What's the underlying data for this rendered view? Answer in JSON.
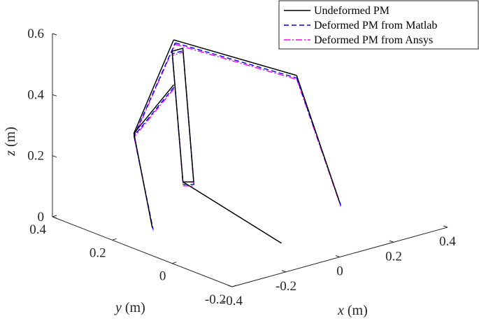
{
  "chart_data": {
    "type": "line3d",
    "grid": false,
    "legend_placement": "top-right",
    "legend": [
      {
        "label": "Undeformed PM",
        "color": "#000000",
        "dash": "solid"
      },
      {
        "label": "Deformed PM from Matlab",
        "color": "#0000ff",
        "dash": "dashed"
      },
      {
        "label": "Deformed PM from Ansys",
        "color": "#ff00ff",
        "dash": "dashdot"
      }
    ],
    "axes": {
      "x": {
        "label_var": "x",
        "label_unit": " (m)",
        "ticks": [
          -0.4,
          -0.2,
          0,
          0.2,
          0.4
        ],
        "tick_labels": [
          "-0.4",
          "-0.2",
          "0",
          "0.2",
          "0.4"
        ],
        "range": [
          -0.4,
          0.4
        ]
      },
      "y": {
        "label_var": "y",
        "label_unit": " (m)",
        "ticks": [
          -0.2,
          0,
          0.2,
          0.4
        ],
        "tick_labels": [
          "-0.2",
          "0",
          "0.2",
          "0.4"
        ],
        "range": [
          -0.2,
          0.4
        ]
      },
      "z": {
        "label_var": "z",
        "label_unit": " (m)",
        "ticks": [
          0,
          0.2,
          0.4,
          0.6
        ],
        "tick_labels": [
          "0",
          "0.2",
          "0.4",
          "0.6"
        ],
        "range": [
          0,
          0.6
        ]
      }
    },
    "series": [
      {
        "name": "Undeformed PM",
        "segments": [
          [
            [
              -0.15,
              0.22,
              0.44
            ],
            [
              -0.32,
              0.2,
              0.33
            ],
            [
              0.05,
              0.4,
              0.47
            ]
          ],
          [
            [
              -0.32,
              0.2,
              0.33
            ],
            [
              -0.43,
              0.04,
              0.11
            ]
          ],
          [
            [
              0.05,
              0.4,
              0.47
            ],
            [
              0.34,
              0.25,
              0.34
            ]
          ],
          [
            [
              0.34,
              0.25,
              0.34
            ],
            [
              0.2,
              -0.02,
              0.06
            ]
          ],
          [
            [
              0.0,
              0.36,
              0.46
            ],
            [
              -0.16,
              0.18,
              0.14
            ],
            [
              -0.12,
              0.18,
              0.13
            ],
            [
              0.04,
              0.36,
              0.46
            ],
            [
              0.0,
              0.36,
              0.46
            ]
          ],
          [
            [
              -0.16,
              0.18,
              0.14
            ],
            [
              -0.05,
              -0.05,
              0.0
            ]
          ]
        ]
      },
      {
        "name": "Deformed PM from Matlab",
        "segments": [
          [
            [
              -0.155,
              0.215,
              0.435
            ],
            [
              -0.325,
              0.195,
              0.325
            ],
            [
              0.045,
              0.39,
              0.465
            ]
          ],
          [
            [
              -0.325,
              0.195,
              0.325
            ],
            [
              -0.432,
              0.035,
              0.105
            ]
          ],
          [
            [
              0.045,
              0.39,
              0.465
            ],
            [
              0.335,
              0.245,
              0.335
            ]
          ],
          [
            [
              0.335,
              0.245,
              0.335
            ],
            [
              0.198,
              -0.025,
              0.055
            ]
          ],
          [
            [
              -0.005,
              0.355,
              0.455
            ],
            [
              -0.165,
              0.175,
              0.135
            ],
            [
              -0.125,
              0.175,
              0.125
            ],
            [
              0.035,
              0.355,
              0.455
            ],
            [
              -0.005,
              0.355,
              0.455
            ]
          ]
        ]
      },
      {
        "name": "Deformed PM from Ansys",
        "segments": [
          [
            [
              -0.158,
              0.212,
              0.432
            ],
            [
              -0.327,
              0.193,
              0.322
            ],
            [
              0.042,
              0.388,
              0.462
            ]
          ],
          [
            [
              -0.327,
              0.193,
              0.322
            ],
            [
              -0.434,
              0.033,
              0.102
            ]
          ],
          [
            [
              0.042,
              0.388,
              0.462
            ],
            [
              0.332,
              0.242,
              0.332
            ]
          ],
          [
            [
              0.332,
              0.242,
              0.332
            ],
            [
              0.196,
              -0.027,
              0.052
            ]
          ],
          [
            [
              -0.008,
              0.352,
              0.452
            ],
            [
              -0.168,
              0.172,
              0.132
            ],
            [
              -0.128,
              0.172,
              0.122
            ],
            [
              0.032,
              0.352,
              0.452
            ],
            [
              -0.008,
              0.352,
              0.452
            ]
          ]
        ]
      }
    ]
  }
}
